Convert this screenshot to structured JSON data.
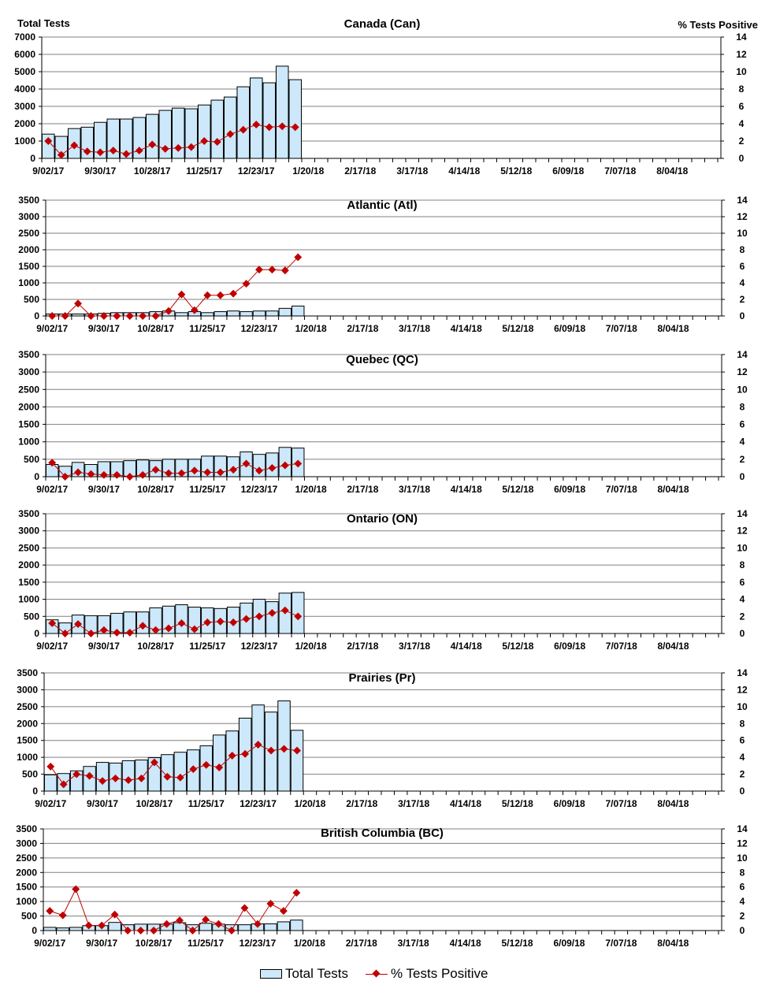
{
  "colors": {
    "bar_fill": "#cce8fa",
    "bar_stroke": "#000000",
    "line": "#c00000",
    "grid": "#808080"
  },
  "headers": {
    "left": "Total Tests",
    "right": "% Tests Positive"
  },
  "legend": {
    "bars": "Total Tests",
    "line": "% Tests Positive"
  },
  "chart_data": [
    {
      "type": "bar+line",
      "title": "Canada (Can)",
      "ylim": [
        0,
        7000
      ],
      "yticks": [
        0,
        1000,
        2000,
        3000,
        4000,
        5000,
        6000,
        7000
      ],
      "y2lim": [
        0,
        14
      ],
      "y2ticks": [
        0,
        2,
        4,
        6,
        8,
        10,
        12,
        14
      ],
      "xticks": [
        "9/02/17",
        "9/30/17",
        "10/28/17",
        "11/25/17",
        "12/23/17",
        "1/20/18",
        "2/17/18",
        "3/17/18",
        "4/14/18",
        "5/12/18",
        "6/09/18",
        "7/07/18",
        "8/04/18"
      ],
      "series": [
        {
          "name": "Total Tests",
          "values": [
            1400,
            1270,
            1720,
            1800,
            2080,
            2270,
            2270,
            2360,
            2540,
            2770,
            2900,
            2860,
            3080,
            3360,
            3540,
            4130,
            4640,
            4360,
            5320,
            4540
          ]
        },
        {
          "name": "% Tests Positive",
          "values": [
            2.0,
            0.4,
            1.5,
            0.8,
            0.7,
            0.9,
            0.5,
            0.9,
            1.6,
            1.1,
            1.2,
            1.3,
            2.0,
            1.9,
            2.8,
            3.3,
            3.9,
            3.6,
            3.7,
            3.6
          ]
        }
      ]
    },
    {
      "type": "bar+line",
      "title": "Atlantic (Atl)",
      "ylim": [
        0,
        3500
      ],
      "yticks": [
        0,
        500,
        1000,
        1500,
        2000,
        2500,
        3000,
        3500
      ],
      "y2lim": [
        0,
        14
      ],
      "y2ticks": [
        0,
        2,
        4,
        6,
        8,
        10,
        12,
        14
      ],
      "xticks": [
        "9/02/17",
        "9/30/17",
        "10/28/17",
        "11/25/17",
        "12/23/17",
        "1/20/18",
        "2/17/18",
        "3/17/18",
        "4/14/18",
        "5/12/18",
        "6/09/18",
        "7/07/18",
        "8/04/18"
      ],
      "series": [
        {
          "name": "Total Tests",
          "values": [
            60,
            60,
            60,
            60,
            80,
            100,
            100,
            100,
            130,
            150,
            100,
            130,
            100,
            130,
            150,
            130,
            150,
            150,
            230,
            300
          ]
        },
        {
          "name": "% Tests Positive",
          "values": [
            0,
            0,
            1.5,
            0,
            0,
            0,
            0,
            0,
            0,
            0.6,
            2.6,
            0.7,
            2.5,
            2.5,
            2.7,
            3.9,
            5.6,
            5.6,
            5.5,
            7.1
          ]
        }
      ]
    },
    {
      "type": "bar+line",
      "title": "Quebec (QC)",
      "ylim": [
        0,
        3500
      ],
      "yticks": [
        0,
        500,
        1000,
        1500,
        2000,
        2500,
        3000,
        3500
      ],
      "y2lim": [
        0,
        14
      ],
      "y2ticks": [
        0,
        2,
        4,
        6,
        8,
        10,
        12,
        14
      ],
      "xticks": [
        "9/02/17",
        "9/30/17",
        "10/28/17",
        "11/25/17",
        "12/23/17",
        "1/20/18",
        "2/17/18",
        "3/17/18",
        "4/14/18",
        "5/12/18",
        "6/09/18",
        "7/07/18",
        "8/04/18"
      ],
      "series": [
        {
          "name": "Total Tests",
          "values": [
            350,
            300,
            410,
            350,
            430,
            430,
            460,
            480,
            460,
            500,
            500,
            500,
            590,
            590,
            570,
            710,
            640,
            680,
            840,
            820
          ]
        },
        {
          "name": "% Tests Positive",
          "values": [
            1.6,
            0,
            0.5,
            0.3,
            0.2,
            0.2,
            0,
            0.2,
            0.8,
            0.4,
            0.4,
            0.7,
            0.5,
            0.5,
            0.8,
            1.5,
            0.7,
            1.0,
            1.3,
            1.5
          ]
        }
      ]
    },
    {
      "type": "bar+line",
      "title": "Ontario (ON)",
      "ylim": [
        0,
        3500
      ],
      "yticks": [
        0,
        500,
        1000,
        1500,
        2000,
        2500,
        3000,
        3500
      ],
      "y2lim": [
        0,
        14
      ],
      "y2ticks": [
        0,
        2,
        4,
        6,
        8,
        10,
        12,
        14
      ],
      "xticks": [
        "9/02/17",
        "9/30/17",
        "10/28/17",
        "11/25/17",
        "12/23/17",
        "1/20/18",
        "2/17/18",
        "3/17/18",
        "4/14/18",
        "5/12/18",
        "6/09/18",
        "7/07/18",
        "8/04/18"
      ],
      "series": [
        {
          "name": "Total Tests",
          "values": [
            400,
            310,
            540,
            520,
            520,
            590,
            630,
            630,
            750,
            800,
            840,
            770,
            750,
            730,
            770,
            890,
            1000,
            930,
            1180,
            1200
          ]
        },
        {
          "name": "% Tests Positive",
          "values": [
            1.2,
            0,
            1.1,
            0,
            0.4,
            0.1,
            0.1,
            0.9,
            0.4,
            0.6,
            1.2,
            0.5,
            1.3,
            1.4,
            1.3,
            1.7,
            2.0,
            2.4,
            2.7,
            2.0
          ]
        }
      ]
    },
    {
      "type": "bar+line",
      "title": "Prairies (Pr)",
      "ylim": [
        0,
        3500
      ],
      "yticks": [
        0,
        500,
        1000,
        1500,
        2000,
        2500,
        3000,
        3500
      ],
      "y2lim": [
        0,
        14
      ],
      "y2ticks": [
        0,
        2,
        4,
        6,
        8,
        10,
        12,
        14
      ],
      "xticks": [
        "9/02/17",
        "9/30/17",
        "10/28/17",
        "11/25/17",
        "12/23/17",
        "1/20/18",
        "2/17/18",
        "3/17/18",
        "4/14/18",
        "5/12/18",
        "6/09/18",
        "7/07/18",
        "8/04/18"
      ],
      "series": [
        {
          "name": "Total Tests",
          "values": [
            480,
            520,
            600,
            730,
            850,
            830,
            900,
            920,
            990,
            1080,
            1150,
            1220,
            1340,
            1660,
            1780,
            2160,
            2550,
            2340,
            2670,
            1800
          ]
        },
        {
          "name": "% Tests Positive",
          "values": [
            2.9,
            0.8,
            2.0,
            1.8,
            1.2,
            1.5,
            1.3,
            1.5,
            3.4,
            1.7,
            1.6,
            2.6,
            3.1,
            2.8,
            4.2,
            4.4,
            5.5,
            4.8,
            5.0,
            4.8
          ]
        }
      ]
    },
    {
      "type": "bar+line",
      "title": "British Columbia (BC)",
      "ylim": [
        0,
        3500
      ],
      "yticks": [
        0,
        500,
        1000,
        1500,
        2000,
        2500,
        3000,
        3500
      ],
      "y2lim": [
        0,
        14
      ],
      "y2ticks": [
        0,
        2,
        4,
        6,
        8,
        10,
        12,
        14
      ],
      "xticks": [
        "9/02/17",
        "9/30/17",
        "10/28/17",
        "11/25/17",
        "12/23/17",
        "1/20/18",
        "2/17/18",
        "3/17/18",
        "4/14/18",
        "5/12/18",
        "6/09/18",
        "7/07/18",
        "8/04/18"
      ],
      "series": [
        {
          "name": "Total Tests",
          "values": [
            110,
            90,
            110,
            170,
            170,
            280,
            200,
            220,
            220,
            220,
            270,
            200,
            250,
            220,
            200,
            200,
            230,
            230,
            300,
            360
          ]
        },
        {
          "name": "% Tests Positive",
          "values": [
            2.7,
            2.1,
            5.7,
            0.7,
            0.7,
            2.2,
            0,
            0,
            0,
            0.9,
            1.4,
            0,
            1.5,
            0.9,
            0,
            3.1,
            0.9,
            3.7,
            2.7,
            5.2
          ]
        }
      ]
    }
  ]
}
